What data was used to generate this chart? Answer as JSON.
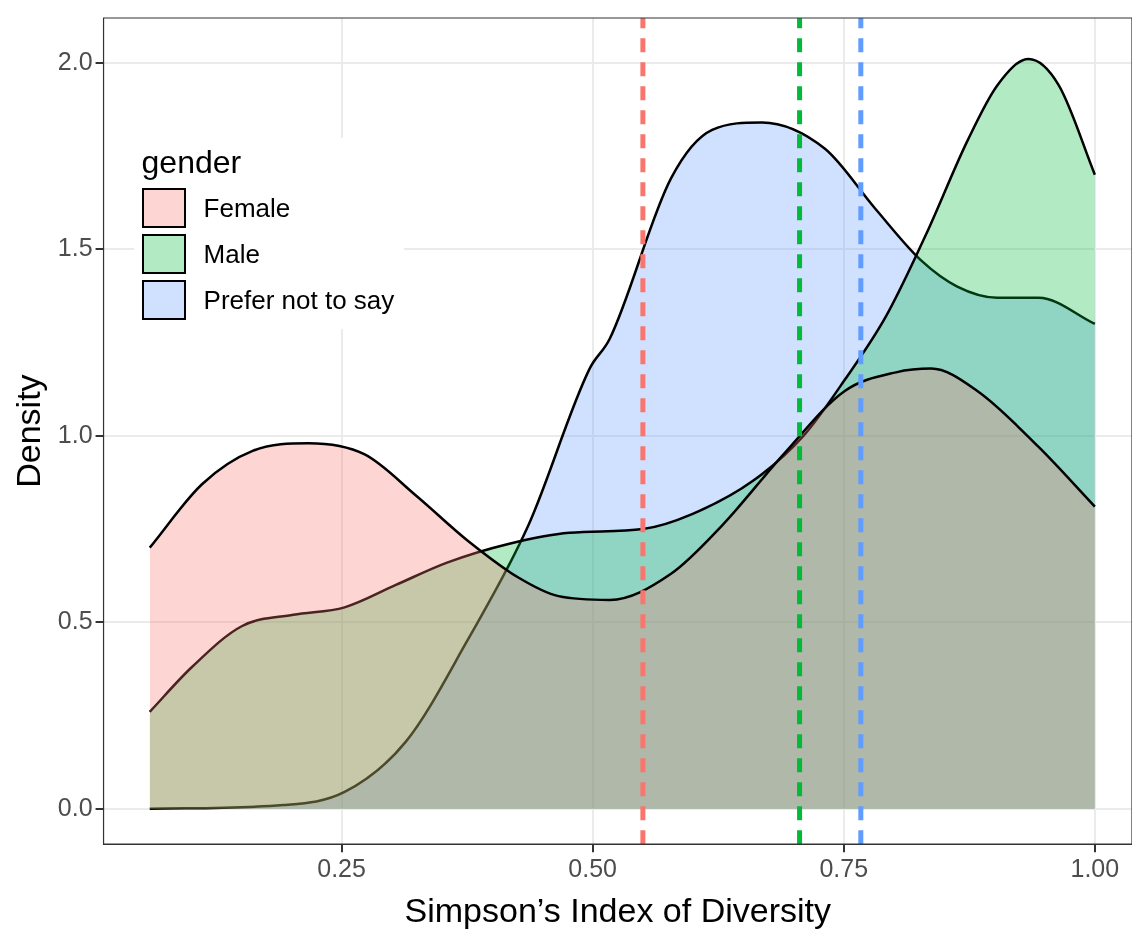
{
  "chart_data": {
    "type": "area",
    "xlabel": "Simpson’s Index of Diversity",
    "ylabel": "Density",
    "legend_title": "gender",
    "legend": "top left",
    "grid": true,
    "xlim": [
      0.013,
      1.037
    ],
    "xticks": [
      {
        "value": 0.25,
        "label": "0.25"
      },
      {
        "value": 0.5,
        "label": "0.50"
      },
      {
        "value": 0.75,
        "label": "0.75"
      },
      {
        "value": 1,
        "label": "1.00"
      }
    ],
    "ylim": [
      -0.095,
      2.12
    ],
    "yticks": [
      {
        "value": 0,
        "label": "0.0"
      },
      {
        "value": 0.5,
        "label": "0.5"
      },
      {
        "value": 1,
        "label": "1.0"
      },
      {
        "value": 1.5,
        "label": "1.5"
      },
      {
        "value": 2,
        "label": "2.0"
      }
    ],
    "series": [
      {
        "name": "Female",
        "color": "#f8766d",
        "x": [
          0.059,
          0.111,
          0.162,
          0.217,
          0.273,
          0.324,
          0.375,
          0.426,
          0.466,
          0.517,
          0.578,
          0.629,
          0.69,
          0.751,
          0.802,
          0.837,
          0.883,
          0.944,
          1.0
        ],
        "values": [
          0.7,
          0.87,
          0.96,
          0.98,
          0.95,
          0.84,
          0.72,
          0.62,
          0.57,
          0.56,
          0.63,
          0.76,
          0.95,
          1.12,
          1.17,
          1.18,
          1.12,
          0.97,
          0.81
        ]
      },
      {
        "name": "Male",
        "color": "#00ba38",
        "x": [
          0.059,
          0.101,
          0.151,
          0.202,
          0.253,
          0.304,
          0.355,
          0.416,
          0.477,
          0.55,
          0.599,
          0.66,
          0.71,
          0.751,
          0.792,
          0.832,
          0.873,
          0.903,
          0.934,
          0.964,
          1.0
        ],
        "values": [
          0.26,
          0.38,
          0.49,
          0.52,
          0.54,
          0.6,
          0.66,
          0.71,
          0.74,
          0.75,
          0.79,
          0.88,
          1.0,
          1.15,
          1.32,
          1.54,
          1.79,
          1.94,
          2.01,
          1.94,
          1.7
        ]
      },
      {
        "name": "Prefer not to say",
        "color": "#619cff",
        "x": [
          0.059,
          0.192,
          0.253,
          0.314,
          0.375,
          0.436,
          0.497,
          0.517,
          0.578,
          0.619,
          0.668,
          0.731,
          0.781,
          0.827,
          0.863,
          0.903,
          0.944,
          1.0
        ],
        "values": [
          0,
          0.01,
          0.045,
          0.18,
          0.45,
          0.76,
          1.18,
          1.26,
          1.69,
          1.82,
          1.84,
          1.77,
          1.61,
          1.47,
          1.4,
          1.37,
          1.37,
          1.3
        ]
      }
    ],
    "ref_lines": [
      {
        "axis": "x",
        "value": 0.55,
        "color": "#f8766d",
        "line_style": "dashed"
      },
      {
        "axis": "x",
        "value": 0.706,
        "color": "#00ba38",
        "line_style": "dashed"
      },
      {
        "axis": "x",
        "value": 0.767,
        "color": "#619cff",
        "line_style": "dashed"
      }
    ]
  }
}
